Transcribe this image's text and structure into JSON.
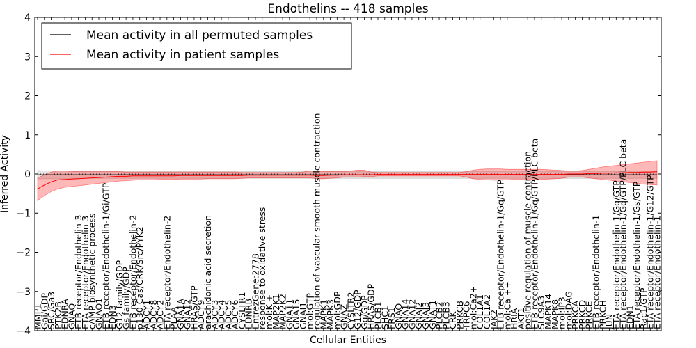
{
  "chart_data": {
    "type": "line",
    "title": "Endothelins -- 418 samples",
    "xlabel": "Cellular Entities",
    "ylabel": "Inferred Activity",
    "ylim": [
      -4,
      4
    ],
    "yticks": [
      -4,
      -3,
      -2,
      -1,
      0,
      1,
      2,
      3,
      4
    ],
    "grid": false,
    "legend_position": "top-left",
    "categories": [
      "MMP1",
      "Gai/GDP",
      "SRC/Ga3",
      "PTK2B",
      "EDNRA",
      "GNAQ",
      "ETB receptor/Endothelin-3",
      "ETA receptor/Endothelin-3",
      "cAMP biosynthetic process",
      "GNAO1",
      "ETB receptor/Endothelin-1/Gi/GTP",
      "EDN3",
      "G12 family/GDP",
      "Gs family/GDP",
      "ETB receptor/Endothelin-2",
      "p130 Cas/CRK/Src/PYK2",
      "ADCY1",
      "ADCY8",
      "ADCY2",
      "ETA receptor/Endothelin-2",
      "PLAA",
      "GNA1A",
      "GNA12",
      "HRAS/GTP",
      "ADCY9",
      "arachidonic acid secretion",
      "ADCY3",
      "ADCY4",
      "ADCY5",
      "ADCY6",
      "CYSLTR1",
      "EDNRB",
      "EntrezGene:2778",
      "response to oxidative stress",
      "mol:K +",
      "MAP2K1",
      "MAP2K2",
      "GNA11",
      "GNA15",
      "GNAI1",
      "mol:GTP",
      "regulation of vascular smooth muscle contraction",
      "MAPK1",
      "MAPK3",
      "mol:GDP",
      "GNAZ",
      "CYSLTR2",
      "G12/GDP",
      "Gq/GDP",
      "HRAS/GDP",
      "PLCB1",
      "SHC1",
      "FRS1",
      "GNAO",
      "GNA14",
      "GNA12",
      "GNAI2",
      "GNAI3",
      "GNAT1",
      "PLCB2",
      "PLCB3",
      "CRK",
      "PRKCB",
      "TRPC6",
      "mol:Ca2+",
      "COL1A1",
      "COL1A2",
      "JAK2",
      "ETB receptor/Endothelin-1/Gq/GTP",
      "mol:Ca ++",
      "HRIA",
      "AKT1",
      "positive regulation of muscle contraction",
      "ETB receptor/Endothelin-1/Gq/GTP/PLC beta",
      "SLC9A3",
      "MAPK14",
      "MAPK8",
      "mol:IP3",
      "mol:DAG",
      "PRKCA",
      "PRKCD",
      "PRKCE",
      "ETB receptor/Endothelin-1",
      "PRKCH",
      "JUN",
      "ETA receptor/Endothelin-1/Gq/GTP",
      "ETA receptor/Endothelin-1/Gq/GTP/PLC beta",
      "EDN1",
      "ETA receptor/Endothelin-1/Gs/GTP",
      "Rac1/GTP",
      "ETA receptor/Endothelin-1/G12/GTP",
      "ETA receptor/Endothelin-1"
    ],
    "series": [
      {
        "name": "Mean activity in all permuted samples",
        "color": "#000000",
        "values": [
          -0.02,
          -0.02,
          -0.02,
          -0.02,
          -0.02,
          -0.02,
          -0.02,
          -0.02,
          -0.02,
          -0.02,
          -0.02,
          -0.02,
          -0.02,
          -0.02,
          -0.02,
          -0.02,
          -0.02,
          -0.02,
          -0.02,
          -0.02,
          -0.02,
          -0.02,
          -0.02,
          -0.02,
          -0.02,
          -0.02,
          -0.02,
          -0.02,
          -0.02,
          -0.02,
          -0.02,
          -0.02,
          -0.02,
          -0.02,
          -0.02,
          -0.02,
          -0.02,
          -0.02,
          -0.02,
          -0.02,
          -0.02,
          -0.02,
          -0.02,
          -0.02,
          -0.02,
          -0.02,
          -0.02,
          -0.02,
          -0.02,
          -0.02,
          -0.02,
          -0.02,
          -0.02,
          -0.02,
          -0.02,
          -0.02,
          -0.02,
          -0.02,
          -0.02,
          -0.02,
          -0.02,
          -0.02,
          -0.02,
          -0.02,
          -0.02,
          -0.02,
          -0.02,
          -0.02,
          -0.02,
          -0.02,
          -0.02,
          -0.02,
          -0.02,
          -0.02,
          -0.02,
          -0.02,
          -0.02,
          -0.02,
          -0.02,
          -0.02,
          -0.02,
          -0.02,
          -0.02,
          -0.02,
          -0.02,
          -0.02,
          -0.02,
          -0.02,
          -0.02,
          -0.02,
          -0.02,
          -0.02
        ],
        "band_lower": [
          -0.13,
          -0.12,
          -0.12,
          -0.12,
          -0.12,
          -0.11,
          -0.11,
          -0.11,
          -0.11,
          -0.11,
          -0.11,
          -0.11,
          -0.11,
          -0.11,
          -0.11,
          -0.11,
          -0.11,
          -0.11,
          -0.11,
          -0.11,
          -0.11,
          -0.11,
          -0.11,
          -0.11,
          -0.11,
          -0.11,
          -0.11,
          -0.11,
          -0.11,
          -0.11,
          -0.11,
          -0.11,
          -0.11,
          -0.11,
          -0.11,
          -0.11,
          -0.11,
          -0.11,
          -0.11,
          -0.11,
          -0.11,
          -0.11,
          -0.11,
          -0.11,
          -0.11,
          -0.11,
          -0.11,
          -0.11,
          -0.11,
          -0.11,
          -0.11,
          -0.11,
          -0.11,
          -0.11,
          -0.11,
          -0.11,
          -0.11,
          -0.11,
          -0.11,
          -0.11,
          -0.11,
          -0.11,
          -0.11,
          -0.11,
          -0.11,
          -0.11,
          -0.11,
          -0.11,
          -0.11,
          -0.11,
          -0.11,
          -0.11,
          -0.11,
          -0.11,
          -0.11,
          -0.11,
          -0.11,
          -0.11,
          -0.11,
          -0.11,
          -0.11,
          -0.11,
          -0.11,
          -0.11,
          -0.11,
          -0.11,
          -0.11,
          -0.11,
          -0.11,
          -0.11,
          -0.11,
          -0.11
        ],
        "band_upper": [
          0.09,
          0.08,
          0.08,
          0.08,
          0.08,
          0.07,
          0.07,
          0.07,
          0.07,
          0.07,
          0.07,
          0.07,
          0.07,
          0.07,
          0.07,
          0.07,
          0.07,
          0.07,
          0.07,
          0.07,
          0.07,
          0.07,
          0.07,
          0.07,
          0.07,
          0.07,
          0.07,
          0.07,
          0.07,
          0.07,
          0.07,
          0.07,
          0.07,
          0.07,
          0.07,
          0.07,
          0.07,
          0.07,
          0.07,
          0.07,
          0.07,
          0.07,
          0.07,
          0.07,
          0.07,
          0.07,
          0.07,
          0.07,
          0.07,
          0.07,
          0.07,
          0.07,
          0.07,
          0.07,
          0.07,
          0.07,
          0.07,
          0.07,
          0.07,
          0.07,
          0.07,
          0.07,
          0.07,
          0.07,
          0.07,
          0.07,
          0.07,
          0.07,
          0.07,
          0.07,
          0.07,
          0.07,
          0.07,
          0.07,
          0.07,
          0.07,
          0.07,
          0.07,
          0.07,
          0.07,
          0.07,
          0.07,
          0.07,
          0.07,
          0.07,
          0.07,
          0.07,
          0.07,
          0.07,
          0.07,
          0.07,
          0.07
        ],
        "band_color": "#999999"
      },
      {
        "name": "Mean activity in patient samples",
        "color": "#ff0000",
        "values": [
          -0.38,
          -0.28,
          -0.2,
          -0.15,
          -0.14,
          -0.13,
          -0.12,
          -0.11,
          -0.1,
          -0.09,
          -0.08,
          -0.07,
          -0.06,
          -0.06,
          -0.05,
          -0.05,
          -0.05,
          -0.05,
          -0.05,
          -0.05,
          -0.05,
          -0.04,
          -0.04,
          -0.04,
          -0.04,
          -0.04,
          -0.04,
          -0.04,
          -0.04,
          -0.04,
          -0.04,
          -0.03,
          -0.03,
          -0.03,
          -0.03,
          -0.03,
          -0.03,
          -0.03,
          -0.03,
          -0.03,
          -0.03,
          -0.04,
          -0.04,
          -0.03,
          -0.03,
          -0.02,
          -0.02,
          -0.02,
          -0.02,
          -0.02,
          -0.01,
          -0.01,
          -0.01,
          -0.01,
          -0.01,
          -0.01,
          -0.01,
          -0.01,
          -0.01,
          -0.01,
          -0.01,
          -0.01,
          -0.01,
          -0.01,
          -0.01,
          -0.01,
          -0.01,
          -0.01,
          -0.01,
          -0.01,
          -0.01,
          -0.01,
          -0.01,
          -0.01,
          -0.01,
          -0.01,
          -0.01,
          -0.01,
          0.0,
          0.0,
          0.0,
          0.01,
          0.01,
          0.02,
          0.02,
          0.03,
          0.03,
          0.04,
          0.04,
          0.05,
          0.05,
          0.06
        ],
        "band_lower": [
          -0.68,
          -0.55,
          -0.45,
          -0.38,
          -0.34,
          -0.32,
          -0.3,
          -0.28,
          -0.26,
          -0.24,
          -0.22,
          -0.2,
          -0.18,
          -0.17,
          -0.16,
          -0.15,
          -0.15,
          -0.15,
          -0.14,
          -0.14,
          -0.14,
          -0.13,
          -0.13,
          -0.13,
          -0.13,
          -0.12,
          -0.12,
          -0.12,
          -0.12,
          -0.12,
          -0.11,
          -0.1,
          -0.1,
          -0.1,
          -0.1,
          -0.1,
          -0.1,
          -0.1,
          -0.1,
          -0.1,
          -0.1,
          -0.12,
          -0.12,
          -0.11,
          -0.1,
          -0.08,
          -0.08,
          -0.08,
          -0.07,
          -0.07,
          -0.05,
          -0.05,
          -0.05,
          -0.05,
          -0.05,
          -0.05,
          -0.05,
          -0.05,
          -0.05,
          -0.05,
          -0.05,
          -0.05,
          -0.05,
          -0.08,
          -0.12,
          -0.14,
          -0.15,
          -0.16,
          -0.16,
          -0.15,
          -0.14,
          -0.14,
          -0.14,
          -0.14,
          -0.14,
          -0.13,
          -0.12,
          -0.11,
          -0.08,
          -0.08,
          -0.08,
          -0.1,
          -0.12,
          -0.14,
          -0.16,
          -0.18,
          -0.2,
          -0.22,
          -0.24,
          -0.26,
          -0.27,
          -0.28
        ],
        "band_upper": [
          -0.1,
          -0.02,
          0.05,
          0.08,
          0.08,
          0.07,
          0.06,
          0.06,
          0.06,
          0.06,
          0.06,
          0.06,
          0.06,
          0.05,
          0.05,
          0.05,
          0.05,
          0.05,
          0.05,
          0.05,
          0.05,
          0.05,
          0.05,
          0.05,
          0.05,
          0.05,
          0.05,
          0.05,
          0.05,
          0.05,
          0.04,
          0.04,
          0.04,
          0.04,
          0.04,
          0.04,
          0.04,
          0.04,
          0.04,
          0.05,
          0.08,
          0.08,
          0.07,
          0.06,
          0.06,
          0.06,
          0.08,
          0.1,
          0.1,
          0.05,
          0.04,
          0.04,
          0.04,
          0.04,
          0.04,
          0.04,
          0.04,
          0.04,
          0.04,
          0.04,
          0.04,
          0.04,
          0.04,
          0.06,
          0.1,
          0.12,
          0.13,
          0.13,
          0.13,
          0.12,
          0.12,
          0.12,
          0.12,
          0.12,
          0.12,
          0.11,
          0.1,
          0.09,
          0.08,
          0.08,
          0.09,
          0.12,
          0.15,
          0.18,
          0.2,
          0.22,
          0.24,
          0.26,
          0.28,
          0.3,
          0.32,
          0.34
        ],
        "band_color": "#ff0000"
      }
    ]
  }
}
